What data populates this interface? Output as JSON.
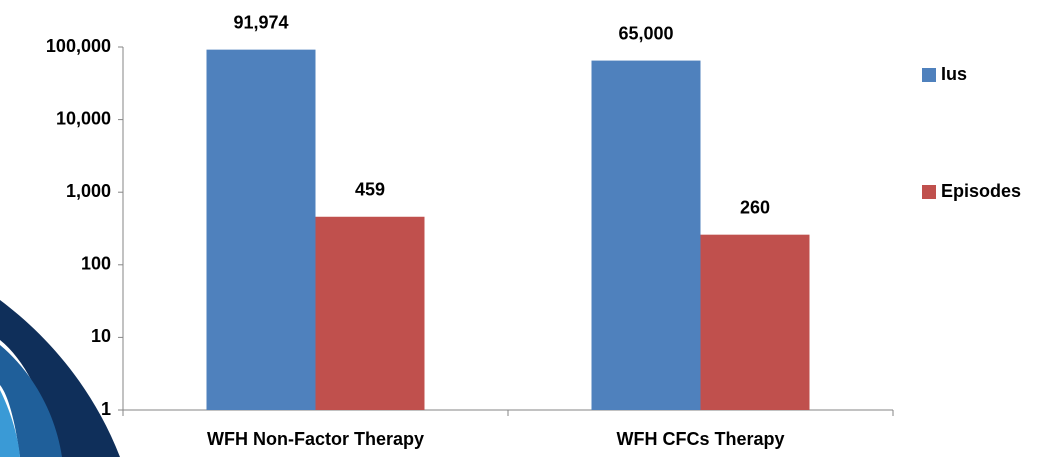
{
  "chart_data": {
    "type": "bar",
    "categories": [
      "WFH Non-Factor Therapy",
      "WFH CFCs Therapy"
    ],
    "series": [
      {
        "name": "Ius",
        "color": "#4f81bd",
        "values": [
          91974,
          65000
        ],
        "value_labels": [
          "91,974",
          "65,000"
        ]
      },
      {
        "name": "Episodes",
        "color": "#c0504d",
        "values": [
          459,
          260
        ]
      }
    ],
    "ylim": [
      1,
      100000
    ],
    "log": true,
    "yticks": [
      1,
      10,
      100,
      {
        "value": 1000,
        "label": "1,000"
      },
      {
        "value": 10000,
        "label": "10,000"
      },
      {
        "value": 100000,
        "label": "100,000"
      }
    ],
    "grid": false,
    "legend": "right"
  }
}
